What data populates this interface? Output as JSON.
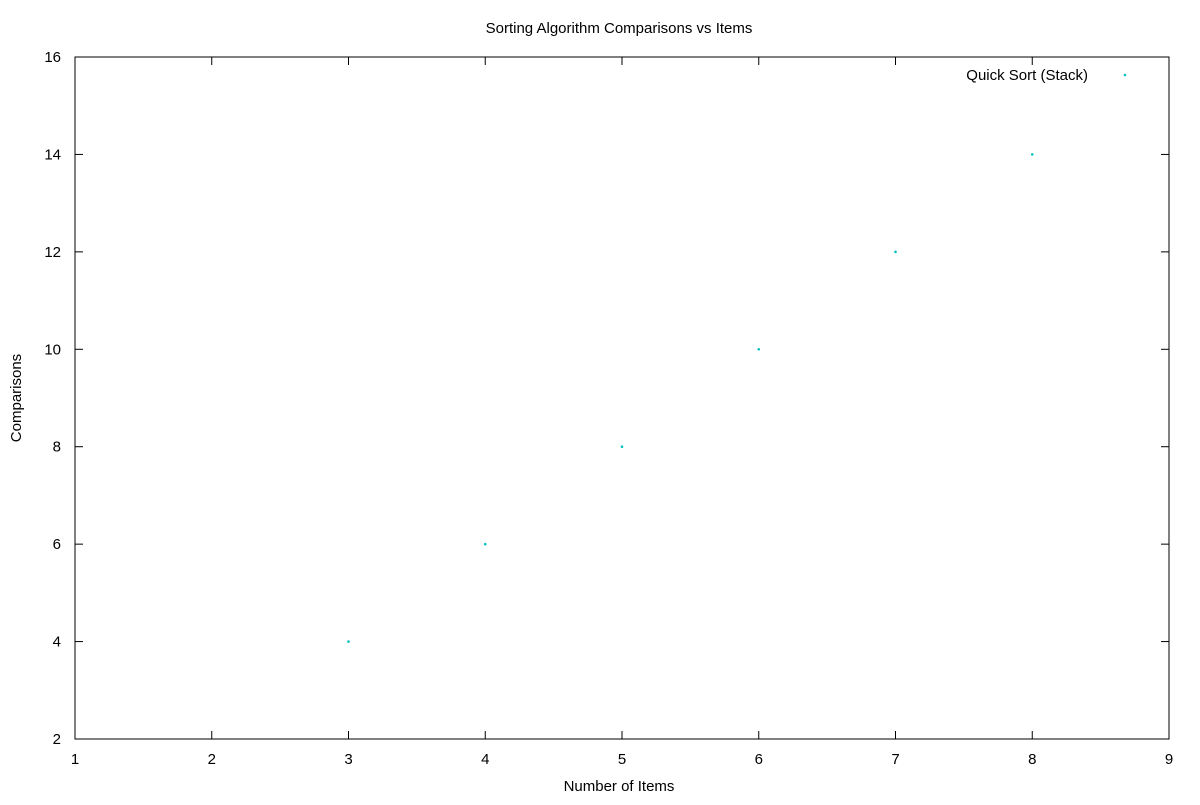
{
  "chart_data": {
    "type": "scatter",
    "title": "Sorting Algorithm Comparisons vs Items",
    "xlabel": "Number of Items",
    "ylabel": "Comparisons",
    "xlim": [
      1,
      9
    ],
    "ylim": [
      2,
      16
    ],
    "xticks": [
      1,
      2,
      3,
      4,
      5,
      6,
      7,
      8,
      9
    ],
    "yticks": [
      2,
      4,
      6,
      8,
      10,
      12,
      14,
      16
    ],
    "grid": false,
    "legend_position": "top-right",
    "series": [
      {
        "name": "Quick Sort (Stack)",
        "color": "#00c0c0",
        "marker": "dot",
        "x": [
          3,
          4,
          5,
          6,
          7,
          8
        ],
        "y": [
          4,
          6,
          8,
          10,
          12,
          14
        ]
      }
    ]
  }
}
